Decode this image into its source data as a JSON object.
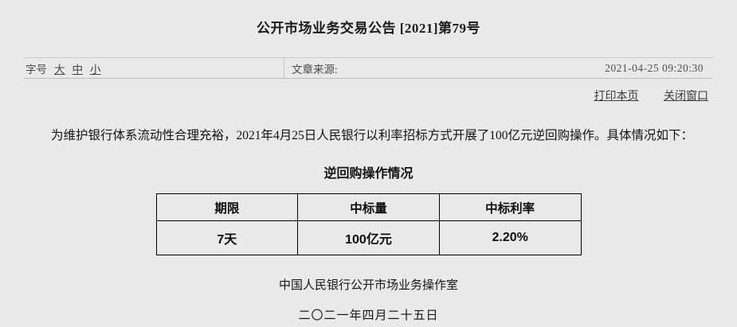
{
  "colors": {
    "background": "#e9e9e9",
    "rule_line": "#c9c9c9",
    "table_border": "#000000",
    "text": "#1c1c1c",
    "muted_text": "#4a4a4a"
  },
  "header": {
    "title": "公开市场业务交易公告 [2021]第79号"
  },
  "toolbar": {
    "font_size_label": "字号",
    "font_size_options": [
      {
        "label": "大"
      },
      {
        "label": "中"
      },
      {
        "label": "小"
      }
    ],
    "source_label": "文章来源:",
    "timestamp": "2021-04-25 09:20:30"
  },
  "actions": {
    "print_label": "打印本页",
    "close_label": "关闭窗口"
  },
  "article": {
    "paragraph": "为维护银行体系流动性合理充裕，2021年4月25日人民银行以利率招标方式开展了100亿元逆回购操作。具体情况如下：",
    "table_title": "逆回购操作情况",
    "table": {
      "headers": [
        "期限",
        "中标量",
        "中标利率"
      ],
      "rows": [
        [
          "7天",
          "100亿元",
          "2.20%"
        ]
      ]
    },
    "signature": "中国人民银行公开市场业务操作室",
    "date": "二〇二一年四月二十五日"
  }
}
